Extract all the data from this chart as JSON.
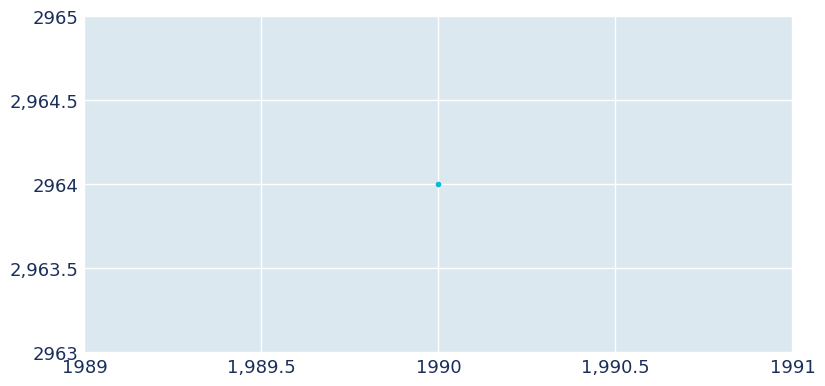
{
  "x": [
    1990
  ],
  "y": [
    2964
  ],
  "xlim": [
    1989,
    1991
  ],
  "ylim": [
    2963,
    2965
  ],
  "xticks": [
    1989,
    1989.5,
    1990,
    1990.5,
    1991
  ],
  "yticks": [
    2963,
    2963.5,
    2964,
    2964.5,
    2965
  ],
  "figure_bg_color": "#ffffff",
  "plot_bg_color": "#dce8f0",
  "grid_color": "#ffffff",
  "point_color": "#00bcd4",
  "tick_color": "#1a2e5a",
  "tick_fontsize": 13,
  "point_size": 3
}
